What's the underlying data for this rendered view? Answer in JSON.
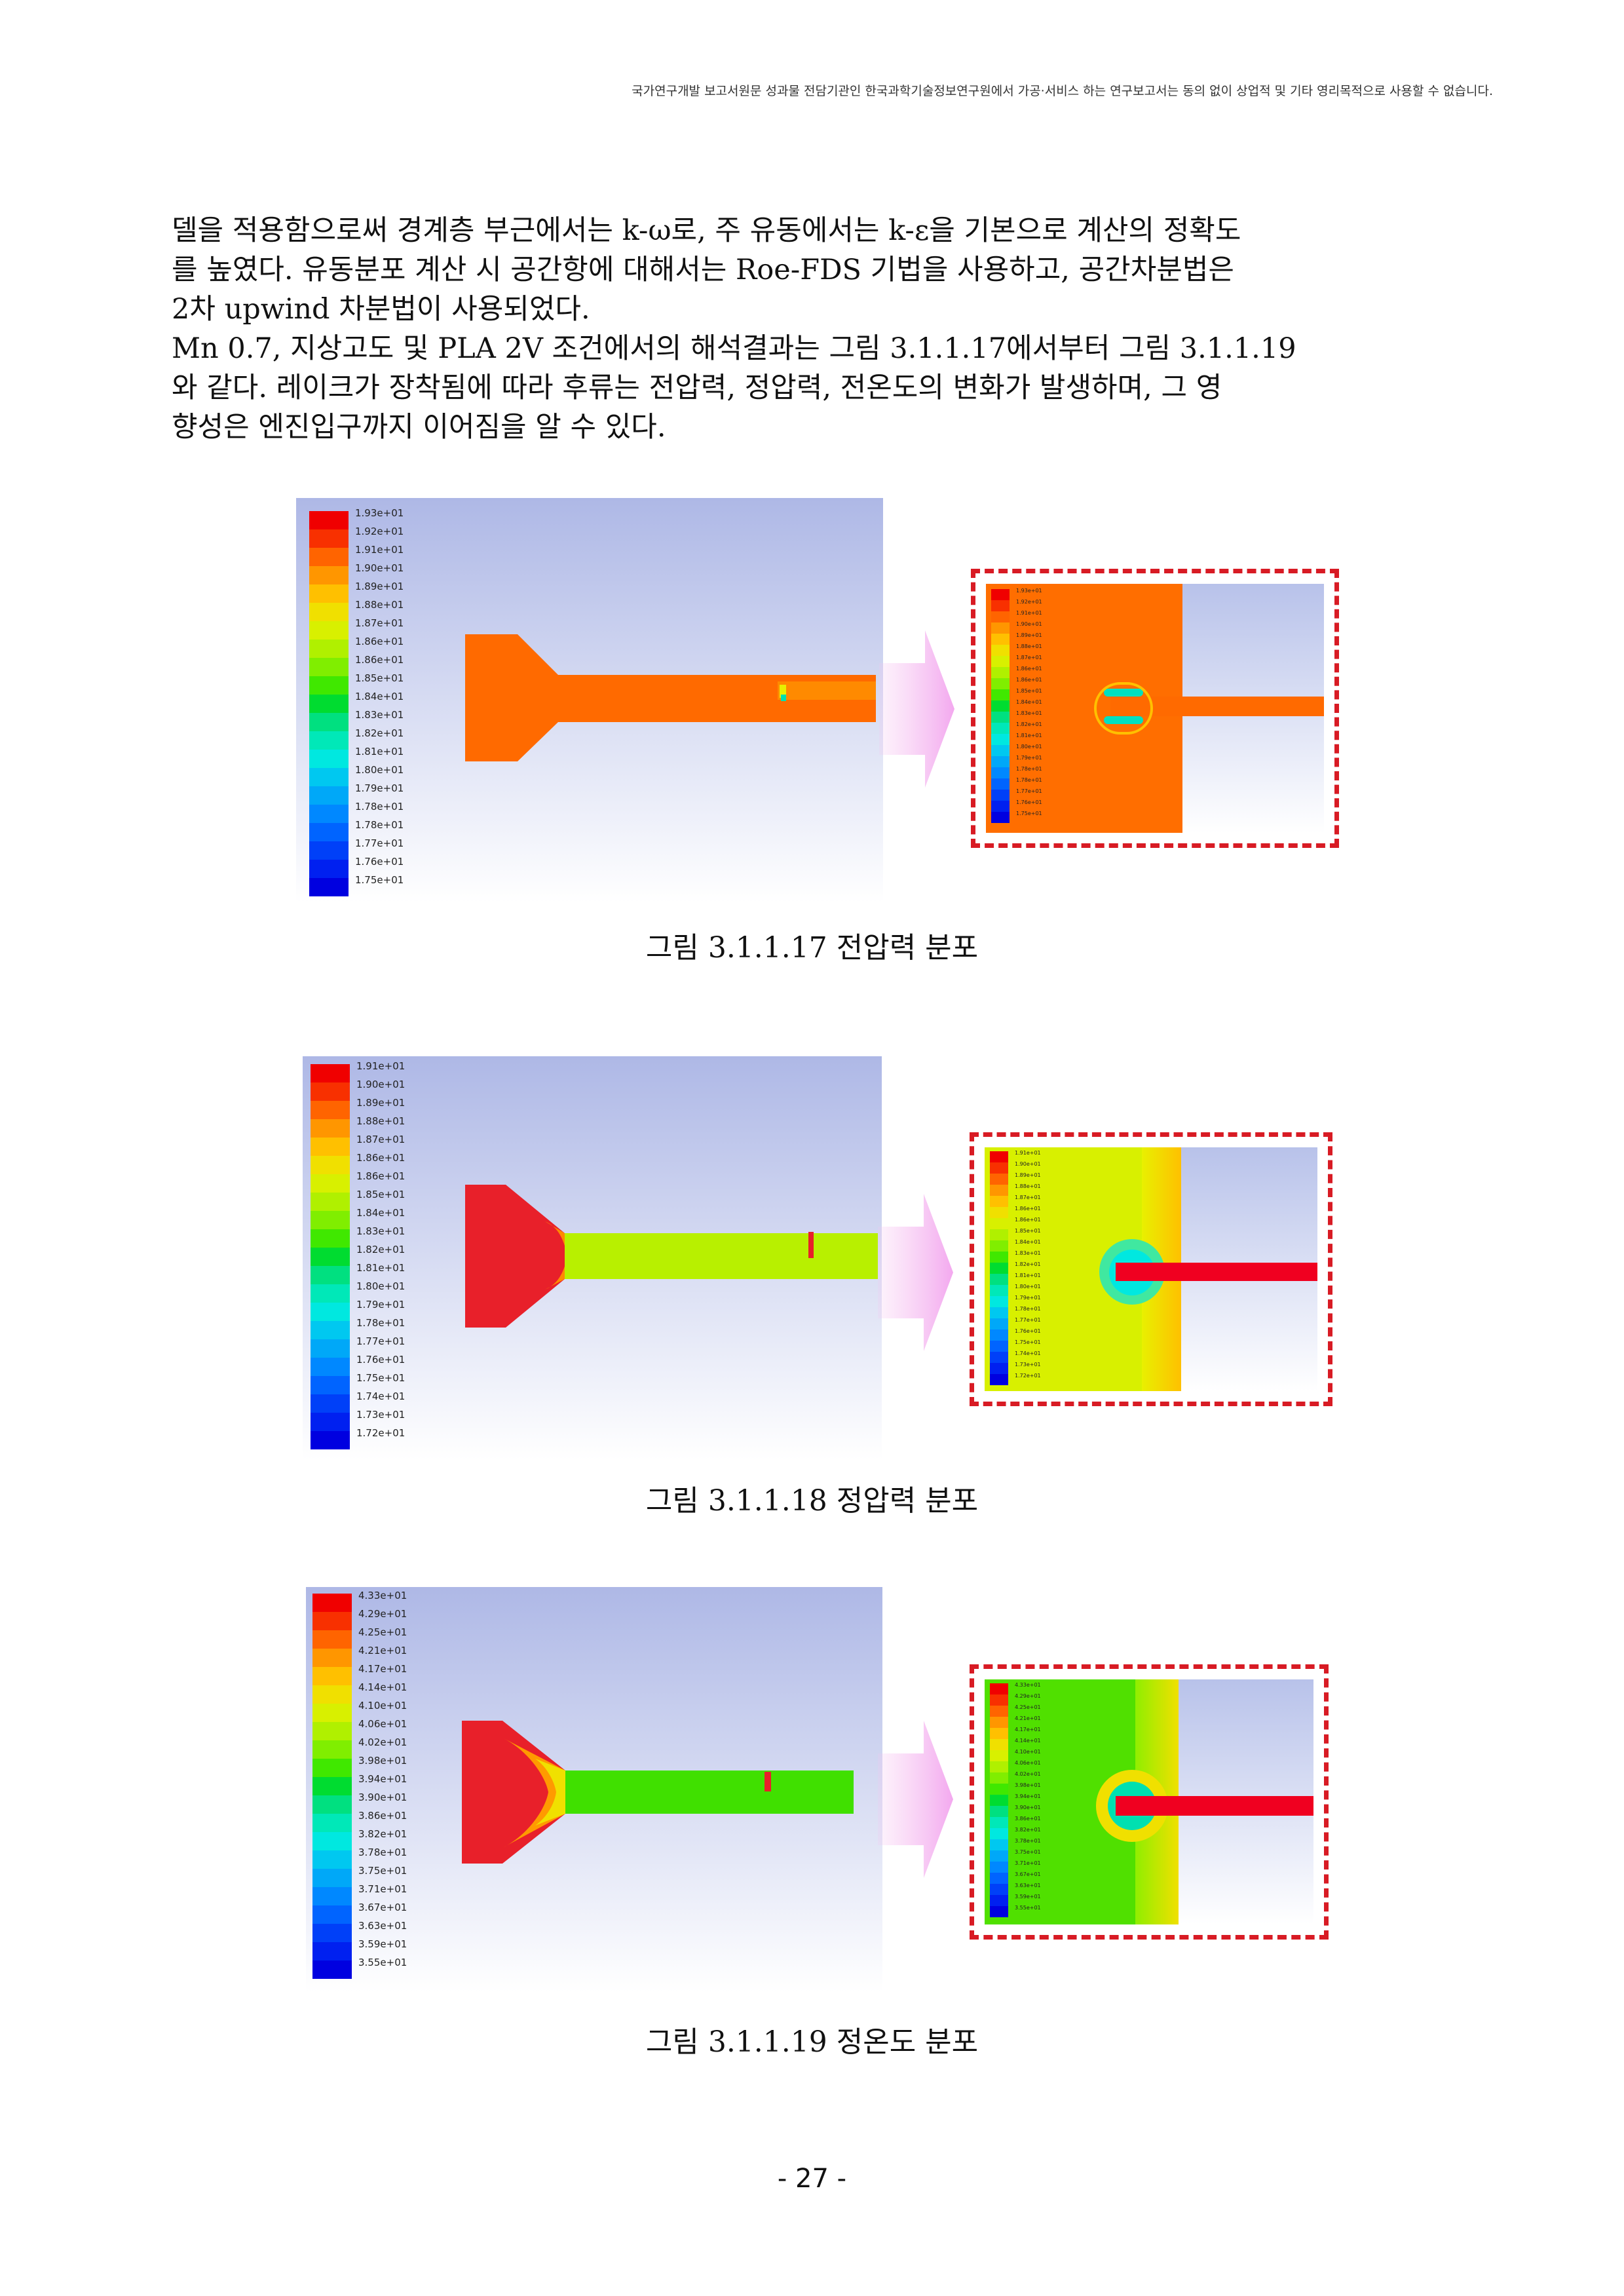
{
  "header_notice": "국가연구개발 보고서원문 성과물 전담기관인 한국과학기술정보연구원에서 가공·서비스 하는 연구보고서는 동의 없이 상업적 및 기타 영리목적으로 사용할 수 없습니다.",
  "paragraph1": {
    "lines": [
      "델을 적용함으로써 경계층 부근에서는 k-ω로, 주 유동에서는 k-ε을 기본으로 계산의 정확도",
      "를 높였다. 유동분포 계산 시 공간항에 대해서는 Roe-FDS 기법을 사용하고, 공간차분법은",
      "2차 upwind 차분법이 사용되었다."
    ]
  },
  "paragraph2": {
    "lines": [
      " Mn 0.7, 지상고도 및 PLA 2V 조건에서의 해석결과는 그림 3.1.1.17에서부터 그림 3.1.1.19",
      "와 같다. 레이크가 장착됨에 따라 후류는 전압력, 정압력, 전온도의 변화가 발생하며, 그 영",
      "향성은 엔진입구까지 이어짐을 알 수 있다."
    ]
  },
  "figures": [
    {
      "caption": "그림 3.1.1.17 전압력 분포",
      "legend": [
        "1.93e+01",
        "1.92e+01",
        "1.91e+01",
        "1.90e+01",
        "1.89e+01",
        "1.88e+01",
        "1.87e+01",
        "1.86e+01",
        "1.86e+01",
        "1.85e+01",
        "1.84e+01",
        "1.83e+01",
        "1.82e+01",
        "1.81e+01",
        "1.80e+01",
        "1.79e+01",
        "1.78e+01",
        "1.78e+01",
        "1.77e+01",
        "1.76e+01",
        "1.75e+01"
      ]
    },
    {
      "caption": "그림 3.1.1.18 정압력 분포",
      "legend": [
        "1.91e+01",
        "1.90e+01",
        "1.89e+01",
        "1.88e+01",
        "1.87e+01",
        "1.86e+01",
        "1.86e+01",
        "1.85e+01",
        "1.84e+01",
        "1.83e+01",
        "1.82e+01",
        "1.81e+01",
        "1.80e+01",
        "1.79e+01",
        "1.78e+01",
        "1.77e+01",
        "1.76e+01",
        "1.75e+01",
        "1.74e+01",
        "1.73e+01",
        "1.72e+01"
      ]
    },
    {
      "caption": "그림 3.1.1.19 정온도 분포",
      "legend": [
        "4.33e+01",
        "4.29e+01",
        "4.25e+01",
        "4.21e+01",
        "4.17e+01",
        "4.14e+01",
        "4.10e+01",
        "4.06e+01",
        "4.02e+01",
        "3.98e+01",
        "3.94e+01",
        "3.90e+01",
        "3.86e+01",
        "3.82e+01",
        "3.78e+01",
        "3.75e+01",
        "3.71e+01",
        "3.67e+01",
        "3.63e+01",
        "3.59e+01",
        "3.55e+01"
      ]
    }
  ],
  "colormap": [
    "#f00000",
    "#f83000",
    "#ff6400",
    "#ff9600",
    "#ffc000",
    "#f0e000",
    "#d8f000",
    "#b0f000",
    "#80ee00",
    "#40e800",
    "#00dc30",
    "#00e080",
    "#00e8b8",
    "#00e8e0",
    "#00c8f0",
    "#00a8f8",
    "#0088ff",
    "#0064ff",
    "#0040f8",
    "#0020f0",
    "#0000e0"
  ],
  "page_number": "- 27 -"
}
